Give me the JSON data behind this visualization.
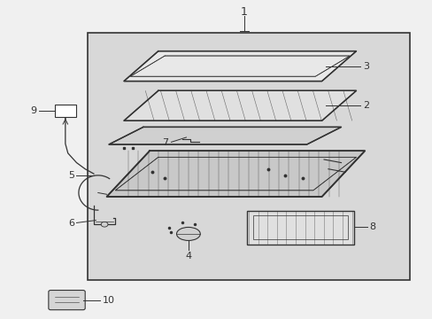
{
  "background_color": "#f0f0f0",
  "box_color": "#d8d8d8",
  "line_color": "#333333",
  "fig_width": 4.89,
  "fig_height": 3.6,
  "dpi": 100
}
